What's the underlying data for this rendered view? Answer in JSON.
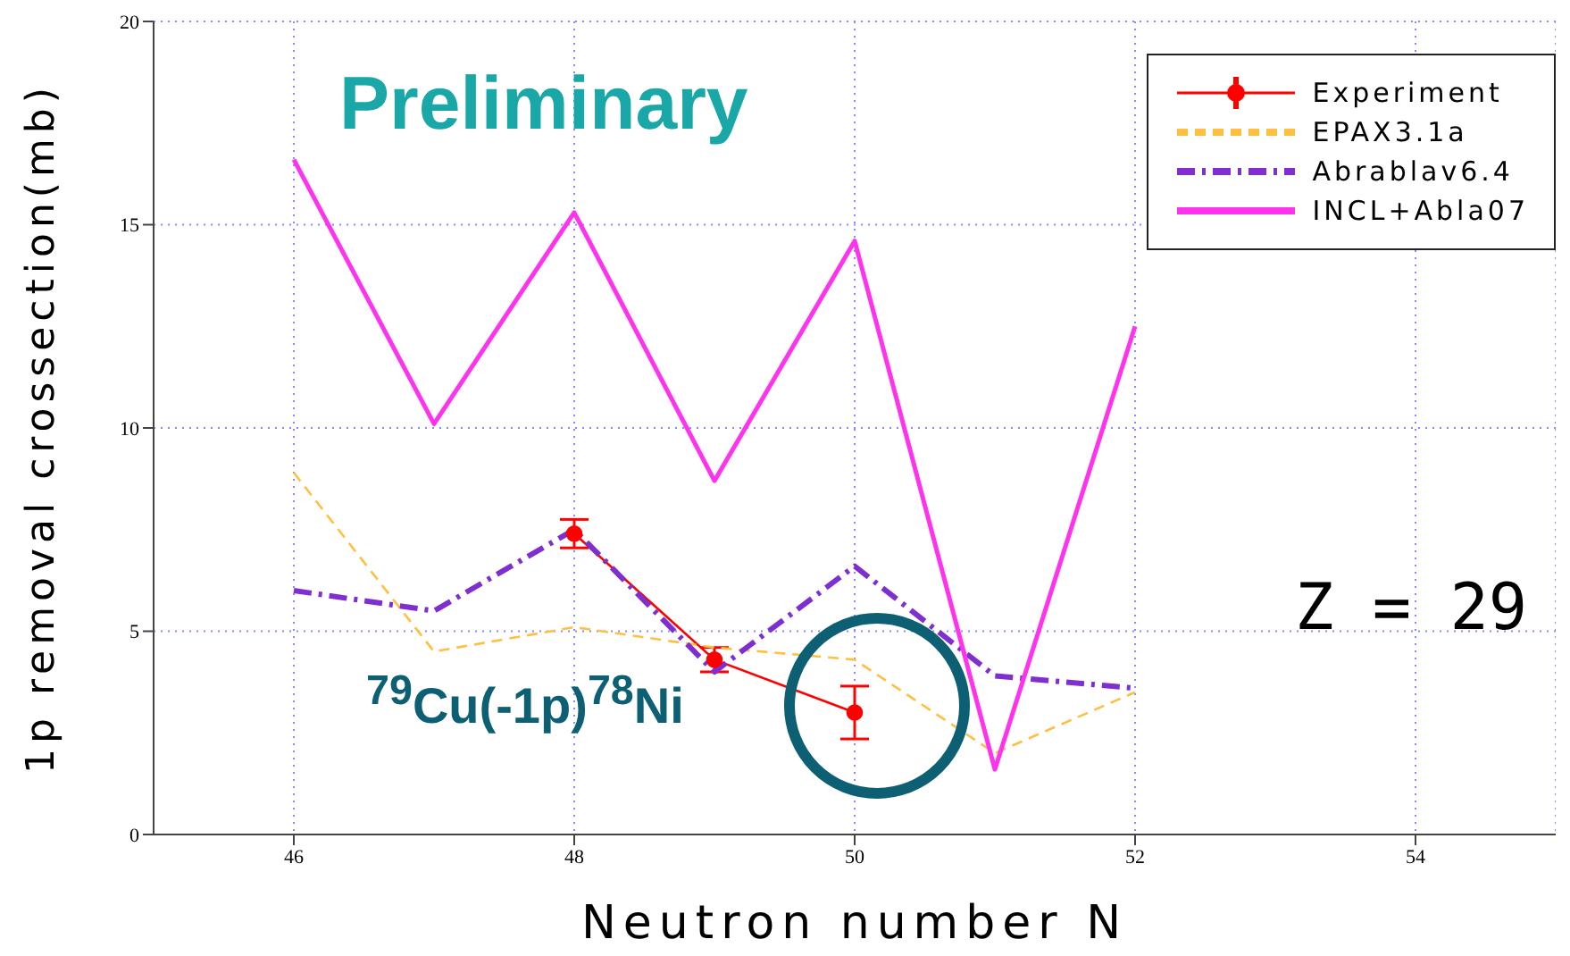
{
  "chart_data": {
    "type": "line",
    "xlabel": "Neutron number N",
    "ylabel": "1p removal crossection(mb)",
    "annotations": [
      "Preliminary",
      "Z = 29",
      "$^{79}$Cu(-1p)$^{78}$Ni"
    ],
    "xlim": [
      45,
      55
    ],
    "xticks": [
      46,
      48,
      50,
      52,
      54
    ],
    "ylim": [
      0,
      20
    ],
    "yticks": [
      0,
      5,
      10,
      15,
      20
    ],
    "grid": true,
    "legend": "top right",
    "series": [
      {
        "name": "Experiment",
        "color": "#ff0000",
        "x": [
          48,
          49,
          50
        ],
        "values": [
          7.4,
          4.3,
          3.0
        ],
        "errors": [
          0.35,
          0.3,
          0.65
        ],
        "marker": "circle",
        "line_style": "solid"
      },
      {
        "name": "EPAX3.1a",
        "color": "#ffbf40",
        "x": [
          46,
          47,
          48,
          49,
          50,
          51,
          52
        ],
        "values": [
          8.9,
          4.5,
          5.1,
          4.6,
          4.3,
          2.0,
          3.5
        ],
        "marker": "none",
        "line_style": "dashed"
      },
      {
        "name": "Abrablav6.4",
        "color": "#7f2fd0",
        "x": [
          46,
          47,
          48,
          49,
          50,
          51,
          52
        ],
        "values": [
          6.0,
          5.5,
          7.5,
          4.0,
          6.6,
          3.9,
          3.6
        ],
        "marker": "none",
        "line_style": "dashed"
      },
      {
        "name": "INCL+Abla07",
        "color": "#ff33ee",
        "x": [
          46,
          47,
          48,
          49,
          50,
          51,
          52
        ],
        "values": [
          16.6,
          10.1,
          15.3,
          8.7,
          14.6,
          1.6,
          12.5
        ],
        "marker": "none",
        "line_style": "solid"
      }
    ]
  }
}
